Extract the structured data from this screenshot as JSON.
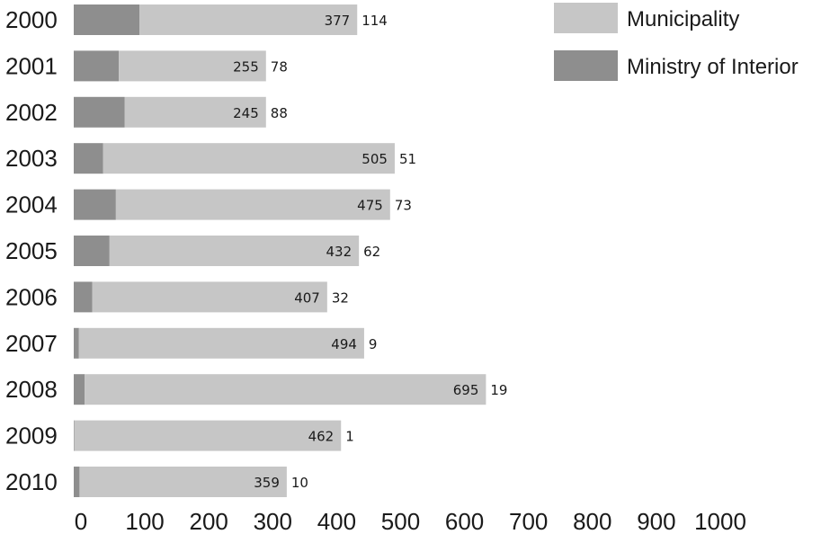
{
  "chart_data": {
    "type": "bar",
    "orientation": "horizontal",
    "stacked": true,
    "categories": [
      "2000",
      "2001",
      "2002",
      "2003",
      "2004",
      "2005",
      "2006",
      "2007",
      "2008",
      "2009",
      "2010"
    ],
    "series": [
      {
        "name": "Ministry of Interior",
        "color": "#8e8e8e",
        "values": [
          114,
          78,
          88,
          51,
          73,
          62,
          32,
          9,
          19,
          1,
          10
        ]
      },
      {
        "name": "Municipality",
        "color": "#c6c6c6",
        "values": [
          377,
          255,
          245,
          505,
          475,
          432,
          407,
          494,
          695,
          462,
          359
        ]
      }
    ],
    "xticks": [
      "0",
      "100",
      "200",
      "300",
      "400",
      "500",
      "600",
      "700",
      "800",
      "900",
      "1000"
    ],
    "xlim": [
      0,
      1000
    ],
    "grid": false,
    "legend": {
      "placement": "top-right",
      "entries": [
        {
          "label": "Municipality",
          "color": "#c6c6c6"
        },
        {
          "label": "Ministry of Interior",
          "color": "#8e8e8e"
        }
      ]
    },
    "title": "",
    "xlabel": "",
    "ylabel": ""
  }
}
